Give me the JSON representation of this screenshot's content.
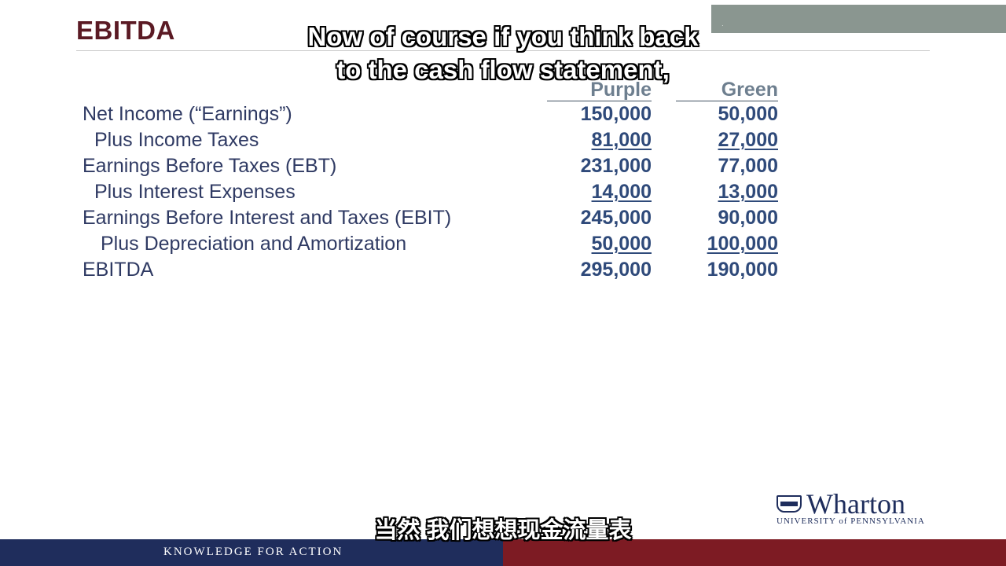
{
  "slide": {
    "title": "EBITDA",
    "columns": {
      "purple": "Purple",
      "green": "Green"
    },
    "rows": [
      {
        "label": "Net Income (“Earnings”)",
        "purple": "150,000",
        "green": "50,000",
        "underline": false
      },
      {
        "label": "Plus Income Taxes",
        "purple": "81,000",
        "green": "27,000",
        "underline": true
      },
      {
        "label": "Earnings Before Taxes (EBT)",
        "purple": "231,000",
        "green": "77,000",
        "underline": false
      },
      {
        "label": "Plus Interest Expenses",
        "purple": "14,000",
        "green": "13,000",
        "underline": true
      },
      {
        "label": "Earnings Before Interest and Taxes (EBIT)",
        "purple": "245,000",
        "green": "90,000",
        "underline": false
      },
      {
        "label": "Plus Depreciation and Amortization",
        "purple": "50,000",
        "green": "100,000",
        "underline": true
      },
      {
        "label": "EBITDA",
        "purple": "295,000",
        "green": "190,000",
        "underline": false
      }
    ]
  },
  "captions": {
    "english_line1": "Now of course if you think back",
    "english_line2": "to the cash flow statement,",
    "chinese": "当然 我们想想现金流量表"
  },
  "logo": {
    "name": "Wharton",
    "subtitle": "UNIVERSITY of PENNSYLVANIA"
  },
  "footer": {
    "tagline": "KNOWLEDGE FOR ACTION"
  },
  "colors": {
    "title": "#5b1a24",
    "footer_left": "#1f2d5c",
    "footer_right": "#7d1b23",
    "values": "#2f4a7a"
  }
}
